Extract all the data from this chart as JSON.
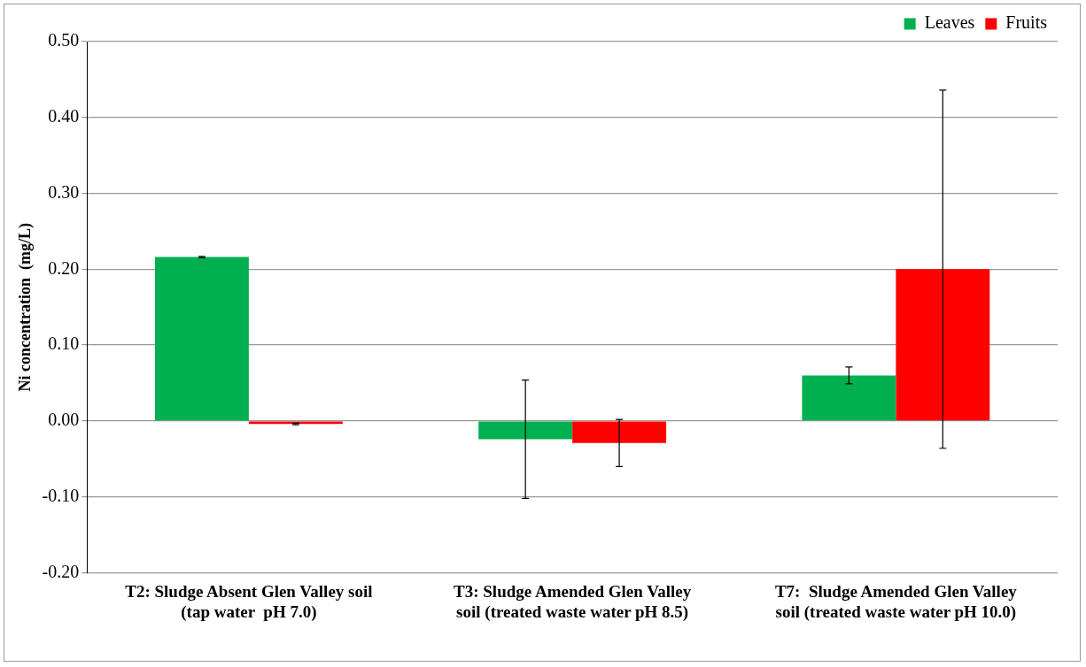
{
  "chart_data": {
    "type": "bar",
    "ylabel": "Ni concentration  (mg/L)",
    "categories": [
      "T2: Sludge Absent Glen Valley soil\n(tap water  pH 7.0)",
      "T3: Sludge Amended Glen Valley\nsoil (treated waste water pH 8.5)",
      "T7:  Sludge Amended Glen Valley\nsoil (treated waste water pH 10.0)"
    ],
    "series": [
      {
        "name": "Leaves",
        "color": "#00b050",
        "values": [
          0.216,
          -0.024,
          0.06
        ],
        "errors": [
          0.001,
          0.078,
          0.011
        ]
      },
      {
        "name": "Fruits",
        "color": "#ff0000",
        "values": [
          -0.004,
          -0.029,
          0.2
        ],
        "errors": [
          0.001,
          0.031,
          0.236
        ]
      }
    ],
    "ylim": [
      -0.2,
      0.5
    ],
    "yticks": [
      {
        "value": -0.2,
        "label": "-0.20"
      },
      {
        "value": -0.1,
        "label": "-0.10"
      },
      {
        "value": 0,
        "label": "0.00"
      },
      {
        "value": 0.1,
        "label": "0.10"
      },
      {
        "value": 0.2,
        "label": "0.20"
      },
      {
        "value": 0.3,
        "label": "0.30"
      },
      {
        "value": 0.4,
        "label": "0.40"
      },
      {
        "value": 0.5,
        "label": "0.50"
      }
    ],
    "grid": "y",
    "legend": "top right"
  }
}
